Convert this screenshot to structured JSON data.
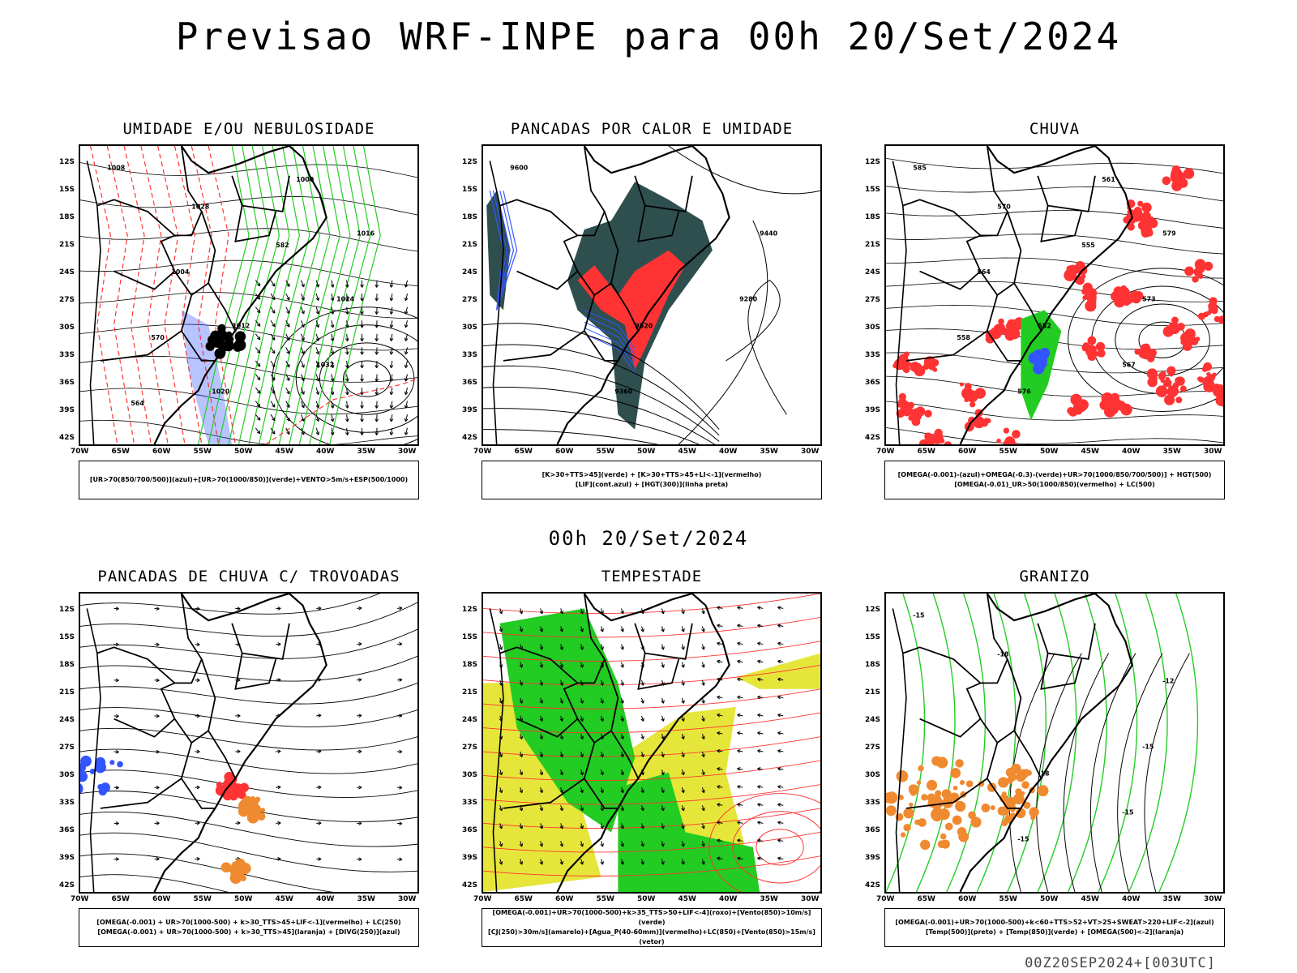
{
  "title": "Previsao WRF-INPE  para 00h 20/Set/2024",
  "mid_label": "00h 20/Set/2024",
  "footer": "00Z20SEP2024+[003UTC]",
  "lat_ticks": [
    "12S",
    "15S",
    "18S",
    "21S",
    "24S",
    "27S",
    "30S",
    "33S",
    "36S",
    "39S",
    "42S"
  ],
  "lon_ticks": [
    "70W",
    "65W",
    "60W",
    "55W",
    "50W",
    "45W",
    "40W",
    "35W",
    "30W"
  ],
  "panels": [
    {
      "title": "UMIDADE E/OU NEBULOSIDADE",
      "legend": [
        "[UR>70(850/700/500)](azul)+[UR>70(1000/850)](verde)+VENTO>5m/s+ESP(500/1000)"
      ],
      "contour_labels": [
        "1008",
        "1012",
        "1016",
        "1020",
        "1024",
        "1028",
        "1032",
        "1004",
        "1000",
        "570",
        "582",
        "564"
      ]
    },
    {
      "title": "PANCADAS POR CALOR E UMIDADE",
      "legend": [
        "[K>30+TTS>45](verde) + [K>30+TTS>45+LI<-1](vermelho)",
        "[LIF](cont.azul) + [HGT(300)](linha preta)"
      ],
      "contour_labels": [
        "9600",
        "9520",
        "9440",
        "9360",
        "9280"
      ]
    },
    {
      "title": "CHUVA",
      "legend": [
        "[OMEGA(-0.001)-(azul)+OMEGA(-0.3)-(verde)+UR>70(1000/850/700/500)] + HGT(500)",
        "[OMEGA(-0.01)_UR>50(1000/850)(vermelho) + LC(500)"
      ],
      "contour_labels": [
        "585",
        "582",
        "579",
        "576",
        "573",
        "570",
        "567",
        "564",
        "561",
        "558",
        "555"
      ]
    },
    {
      "title": "PANCADAS DE CHUVA C/ TROVOADAS",
      "legend": [
        "[OMEGA(-0.001) + UR>70(1000-500) + k>30_TTS>45+LIF<-1](vermelho) + LC(250)",
        "[OMEGA(-0.001) + UR>70(1000-500) + k>30_TTS>45](laranja) + [DIVG(250)](azul)"
      ],
      "contour_labels": []
    },
    {
      "title": "TEMPESTADE",
      "legend": [
        "[OMEGA(-0.001)+UR>70(1000-500)+k>35_TTS>50+LIF<-4](roxo)+[Vento(850)>10m/s](verde)",
        "[CJ(250)>30m/s](amarelo)+[Agua_P(40-60mm)](vermelho)+LC(850)+[Vento(850)>15m/s](vetor)"
      ],
      "contour_labels": []
    },
    {
      "title": "GRANIZO",
      "legend": [
        "[OMEGA(-0.001)+UR>70(1000-500)+k<60+TTS>52+VT>25+SWEAT>220+LIF<-2](azul)",
        "[Temp(500)](preto) + [Temp(850)](verde) + [OMEGA(500)<-2](laranja)"
      ],
      "contour_labels": [
        "-15",
        "-18",
        "-12",
        "-15",
        "-15",
        "-18",
        "-15"
      ]
    }
  ],
  "colors": {
    "red": "#ff3333",
    "green": "#22cc22",
    "blue": "#3355ff",
    "yellow": "#e6e63a",
    "orange": "#f08a30",
    "teal": "#2f4f4f",
    "black": "#000000"
  }
}
